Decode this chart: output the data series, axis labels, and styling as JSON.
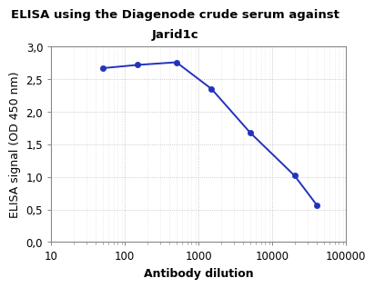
{
  "title_line1": "ELISA using the Diagenode crude serum against",
  "title_line2": "Jarid1c",
  "xlabel": "Antibody dilution",
  "ylabel": "ELISA signal (OD 450 nm)",
  "x_data": [
    50,
    150,
    500,
    1500,
    5000,
    20000,
    40000
  ],
  "y_data": [
    2.67,
    2.72,
    2.76,
    2.35,
    1.68,
    1.02,
    0.57
  ],
  "line_color": "#2233bb",
  "marker_color": "#2233bb",
  "xlim_log": [
    10,
    100000
  ],
  "ylim": [
    0.0,
    3.0
  ],
  "yticks": [
    0.0,
    0.5,
    1.0,
    1.5,
    2.0,
    2.5,
    3.0
  ],
  "ytick_labels": [
    "0,0",
    "0,5",
    "1,0",
    "1,5",
    "2,0",
    "2,5",
    "3,0"
  ],
  "xtick_values": [
    10,
    100,
    1000,
    10000,
    100000
  ],
  "xtick_labels": [
    "10",
    "100",
    "1000",
    "10000",
    "100000"
  ],
  "background_color": "#ffffff",
  "grid_major_color": "#bbbbbb",
  "grid_minor_color": "#dddddd",
  "title_fontsize": 9.5,
  "axis_label_fontsize": 9,
  "tick_fontsize": 8.5,
  "line_width": 1.4,
  "marker_size": 4.5
}
